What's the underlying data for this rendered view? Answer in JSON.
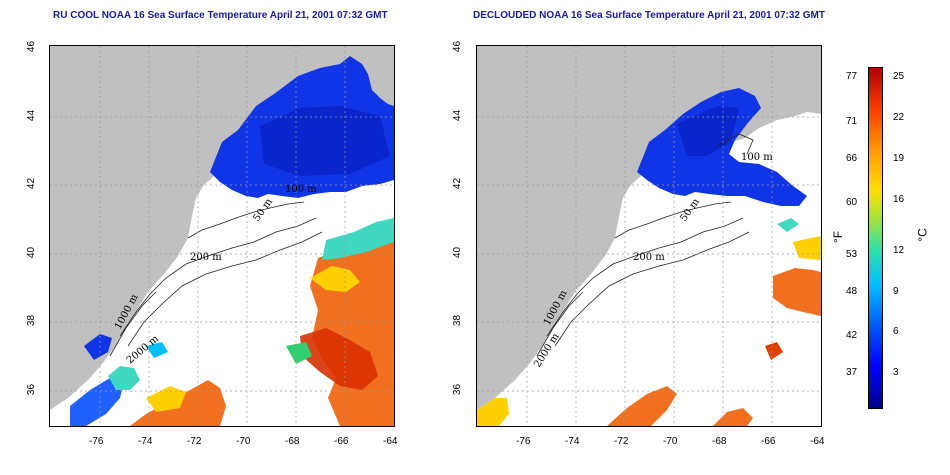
{
  "titles": {
    "left": "RU COOL NOAA 16 Sea Surface Temperature April 21, 2001 07:32 GMT",
    "right": "DECLOUDED NOAA 16 Sea Surface Temperature April 21, 2001 07:32 GMT"
  },
  "axes": {
    "x_ticks": [
      "-76",
      "-74",
      "-72",
      "-70",
      "-68",
      "-66",
      "-64"
    ],
    "y_ticks": [
      "46",
      "44",
      "42",
      "40",
      "38",
      "36"
    ]
  },
  "contours": {
    "labels": [
      "50 m",
      "100 m",
      "200 m",
      "1000 m",
      "2000 m"
    ]
  },
  "colorbar": {
    "fahrenheit_unit": "°F",
    "celsius_unit": "°C",
    "fahrenheit_ticks": [
      "77",
      "71",
      "66",
      "60",
      "53",
      "48",
      "42",
      "37"
    ],
    "celsius_ticks": [
      "25",
      "22",
      "19",
      "16",
      "12",
      "9",
      "6",
      "3"
    ]
  },
  "colors": {
    "land": "#c0c0c0",
    "cold": "#1030e0",
    "warm": "#f06000",
    "title": "#1a1aa0"
  }
}
